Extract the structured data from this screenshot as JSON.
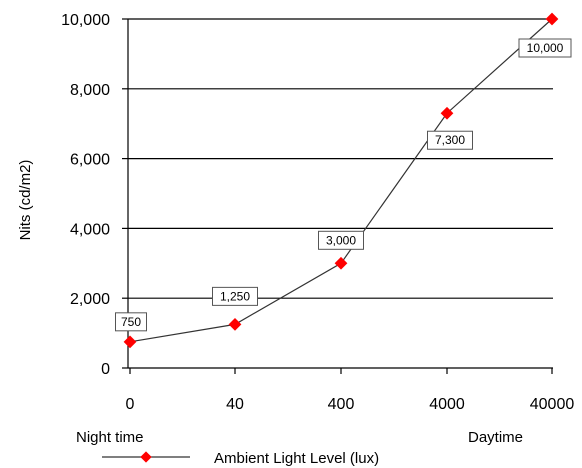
{
  "chart_data": {
    "type": "line",
    "title": "",
    "xlabel": "Ambient Light Level (lux)",
    "ylabel": "Nits (cd/m2)",
    "categories": [
      "0",
      "40",
      "400",
      "4000",
      "40000"
    ],
    "ylim": [
      0,
      10000
    ],
    "yticks": [
      "0",
      "2,000",
      "4,000",
      "6,000",
      "8,000",
      "10,000"
    ],
    "grid": true,
    "series": [
      {
        "name": "",
        "values": [
          750,
          1250,
          3000,
          7300,
          10000
        ],
        "labels": [
          "750",
          "1,250",
          "3,000",
          "7,300",
          "10,000"
        ],
        "color": "#ff0000",
        "line_color": "#333333"
      }
    ],
    "annotations": {
      "left_note": "Night time",
      "right_note": "Daytime"
    }
  }
}
